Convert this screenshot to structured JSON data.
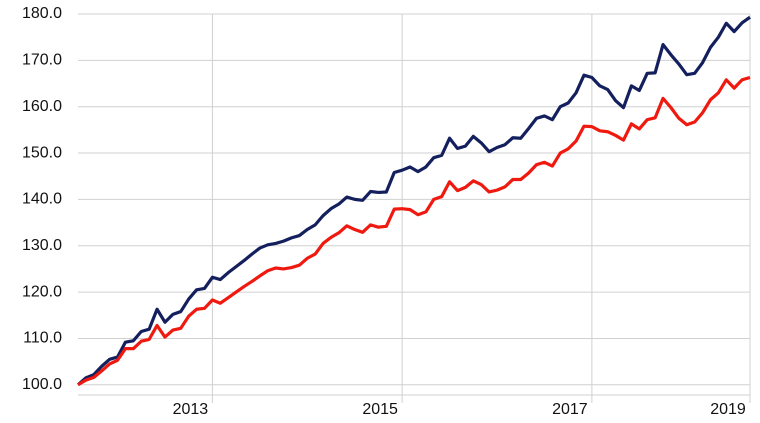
{
  "chart_data": {
    "type": "line",
    "categories": [
      null,
      null,
      null,
      null,
      null,
      null,
      null,
      null,
      null,
      null,
      null,
      null,
      null,
      null,
      null,
      null,
      null,
      "2013",
      null,
      null,
      null,
      null,
      null,
      null,
      null,
      null,
      null,
      null,
      null,
      null,
      null,
      null,
      null,
      null,
      null,
      null,
      null,
      null,
      null,
      null,
      null,
      "2015",
      null,
      null,
      null,
      null,
      null,
      null,
      null,
      null,
      null,
      null,
      null,
      null,
      null,
      null,
      null,
      null,
      null,
      null,
      null,
      null,
      null,
      null,
      null,
      "2017",
      null,
      null,
      null,
      null,
      null,
      null,
      null,
      null,
      null,
      null,
      null,
      null,
      null,
      null,
      null,
      null,
      null,
      null,
      null,
      "2019"
    ],
    "series": [
      {
        "color": "#14205e",
        "values": [
          100,
          101.5,
          102.2,
          104,
          105.5,
          106,
          109.2,
          109.5,
          111.5,
          112,
          116.3,
          113.5,
          115.2,
          115.8,
          118.5,
          120.5,
          120.8,
          123.2,
          122.7,
          124.2,
          125.5,
          126.8,
          128.2,
          129.5,
          130.2,
          130.5,
          131,
          131.7,
          132.2,
          133.5,
          134.5,
          136.5,
          138,
          139,
          140.5,
          140,
          139.8,
          141.7,
          141.5,
          141.6,
          145.8,
          146.3,
          147,
          146,
          147,
          149,
          149.5,
          153.2,
          151,
          151.5,
          153.6,
          152.2,
          150.3,
          151.2,
          151.8,
          153.3,
          153.2,
          155.3,
          157.5,
          158,
          157.2,
          160,
          160.8,
          163,
          166.8,
          166.3,
          164.5,
          163.7,
          161.3,
          159.8,
          164.5,
          163.5,
          167.2,
          167.3,
          173.4,
          171.2,
          169.2,
          166.9,
          167.2,
          169.5,
          172.8,
          175,
          178,
          176.2,
          178.1,
          179.3
        ]
      },
      {
        "color": "#f0190f",
        "values": [
          100,
          101,
          101.6,
          103,
          104.5,
          105.3,
          107.8,
          107.8,
          109.4,
          109.8,
          112.8,
          110.3,
          111.8,
          112.2,
          114.8,
          116.3,
          116.5,
          118.3,
          117.6,
          118.8,
          120,
          121.2,
          122.3,
          123.5,
          124.6,
          125.2,
          125,
          125.3,
          125.8,
          127.3,
          128.2,
          130.5,
          131.8,
          132.8,
          134.3,
          133.5,
          132.9,
          134.5,
          134,
          134.2,
          137.9,
          138,
          137.8,
          136.7,
          137.3,
          140,
          140.6,
          143.8,
          141.9,
          142.6,
          144,
          143.2,
          141.6,
          142,
          142.7,
          144.3,
          144.3,
          145.7,
          147.5,
          148,
          147.2,
          150,
          150.9,
          152.6,
          155.8,
          155.7,
          154.8,
          154.6,
          153.8,
          152.8,
          156.3,
          155.2,
          157.2,
          157.6,
          161.8,
          159.8,
          157.5,
          156.1,
          156.7,
          158.7,
          161.5,
          163,
          165.8,
          164,
          165.8,
          166.3
        ]
      }
    ],
    "ylim": [
      97.8,
      180
    ],
    "yticks": [
      {
        "value": 100,
        "label": "100.0"
      },
      {
        "value": 110,
        "label": "110.0"
      },
      {
        "value": 120,
        "label": "120.0"
      },
      {
        "value": 130,
        "label": "130.0"
      },
      {
        "value": 140,
        "label": "140.0"
      },
      {
        "value": 150,
        "label": "150.0"
      },
      {
        "value": 160,
        "label": "160.0"
      },
      {
        "value": 170,
        "label": "170.0"
      },
      {
        "value": 180,
        "label": "180.0"
      }
    ],
    "grid": true
  }
}
